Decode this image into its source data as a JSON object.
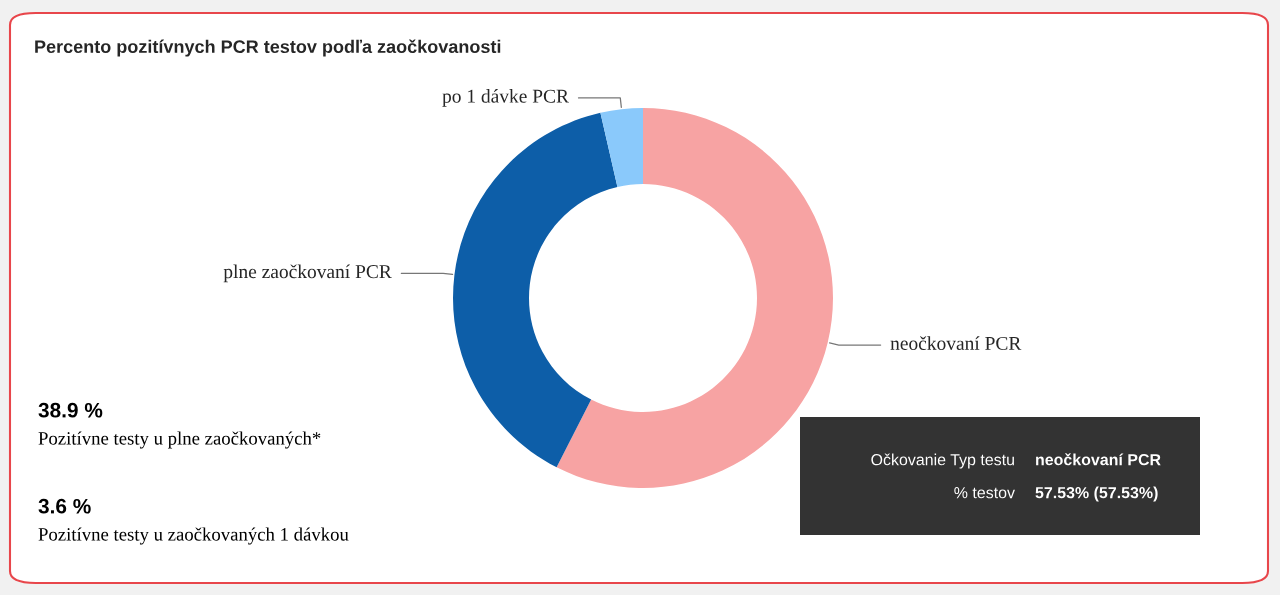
{
  "chart_data": {
    "type": "donut",
    "title": "Percento pozitívnych PCR testov podľa zaočkovanosti",
    "categories": [
      "neočkovaní PCR",
      "plne zaočkovaní PCR",
      "po 1 dávke PCR"
    ],
    "values": [
      57.53,
      38.9,
      3.6
    ],
    "colors": [
      "#f7a3a3",
      "#0d5ea8",
      "#8ac9fb"
    ],
    "annotations": [
      "38.9 %",
      "Pozitívne testy u plne zaočkovaných*",
      "3.6 %",
      "Pozitívne testy u zaočkovaných 1 dávkou",
      "Očkovanie Typ testu",
      "neočkovaní PCR",
      "% testov",
      "57.53% (57.53%)"
    ]
  }
}
